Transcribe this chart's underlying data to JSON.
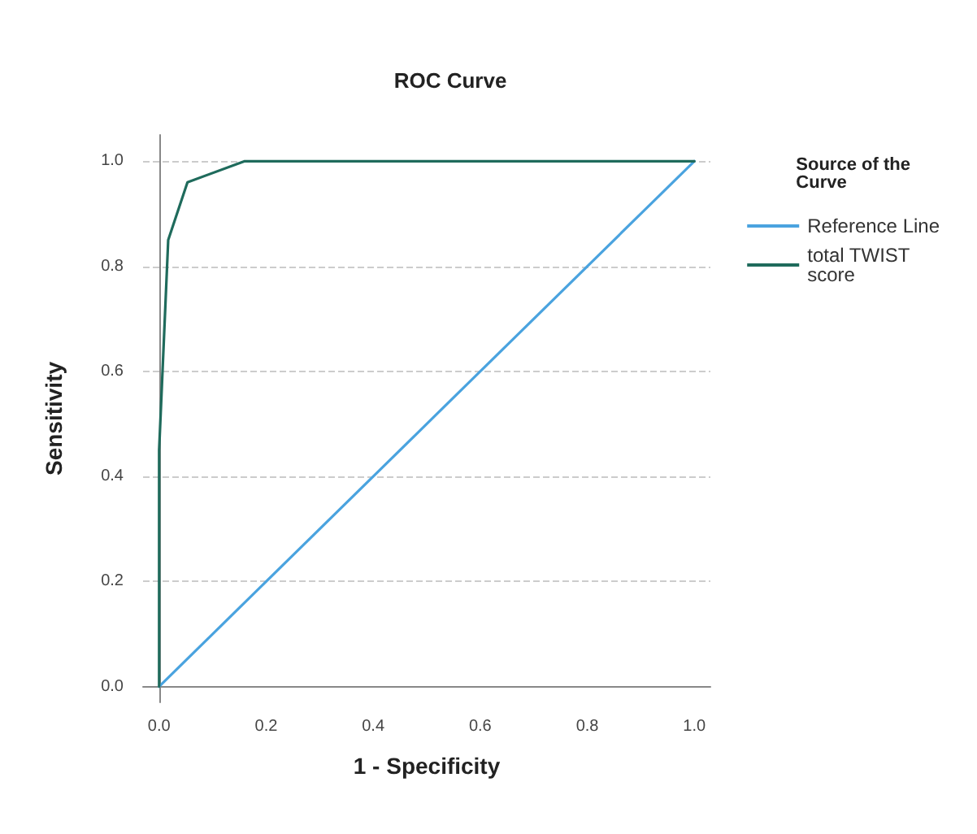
{
  "chart_data": {
    "type": "line",
    "title": "ROC Curve",
    "xlabel": "1 - Specificity",
    "ylabel": "Sensitivity",
    "legend_title": "Source of the Curve",
    "series": [
      {
        "name": "Reference Line",
        "color": "#4aa3df",
        "x": [
          0,
          1
        ],
        "values": [
          0,
          1
        ]
      },
      {
        "name": "total TWIST score",
        "color": "#1f6b5c",
        "x": [
          0,
          0,
          0.017,
          0.053,
          0.16,
          1
        ],
        "values": [
          0,
          0.45,
          0.85,
          0.96,
          1,
          1
        ]
      }
    ],
    "xlim": [
      -0.03,
      1.03
    ],
    "ylim": [
      -0.03,
      1.05
    ],
    "xticks": [
      {
        "value": 0,
        "label": "0.0"
      },
      0.2,
      0.4,
      0.6,
      0.8,
      {
        "value": 1,
        "label": "1.0"
      }
    ],
    "yticks": [
      {
        "value": 0,
        "label": "0.0"
      },
      0.2,
      0.4,
      0.6,
      0.8,
      {
        "value": 1,
        "label": "1.0"
      }
    ],
    "grid": "y",
    "legend": "right",
    "marker": "none",
    "line_style": "solid"
  }
}
